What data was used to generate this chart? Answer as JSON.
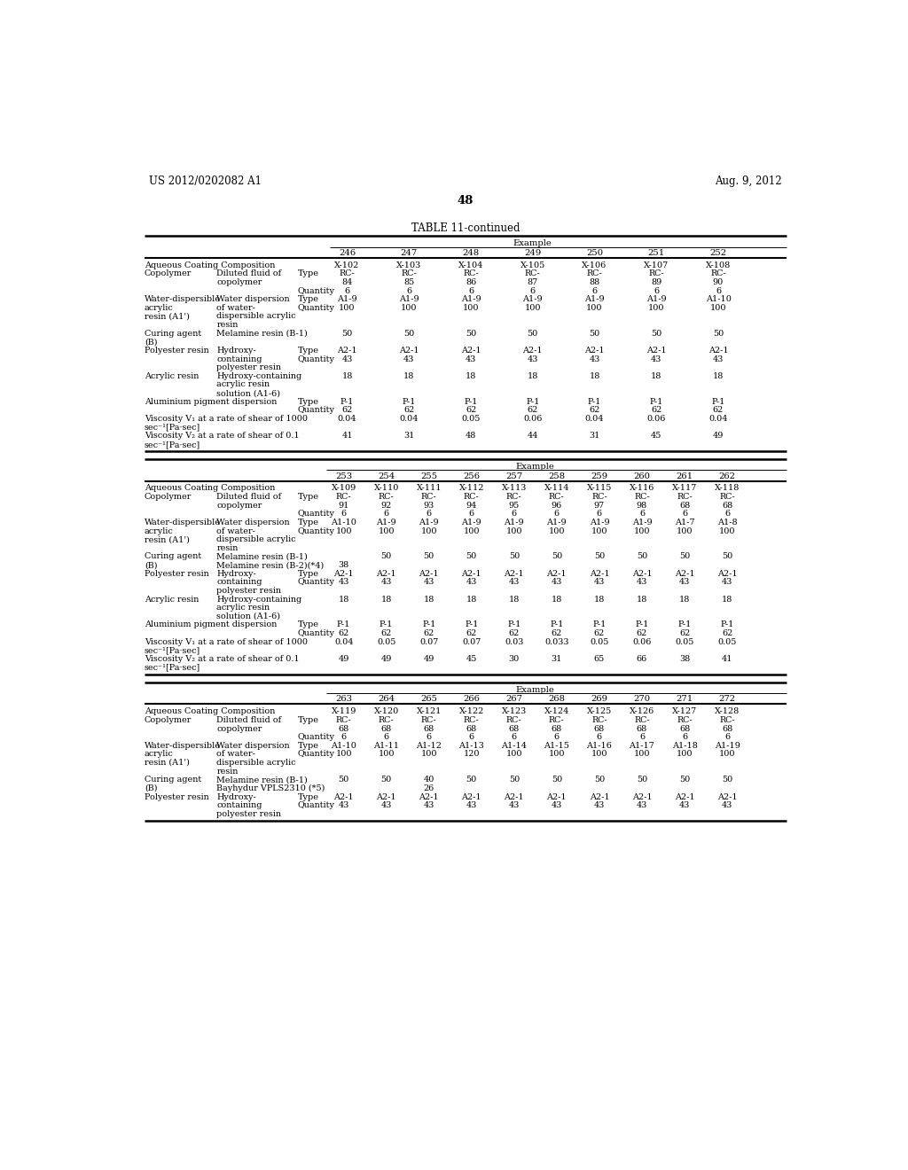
{
  "header_left": "US 2012/0202082 A1",
  "header_right": "Aug. 9, 2012",
  "page_number": "48",
  "table_title": "TABLE 11-continued",
  "background_color": "#ffffff",
  "text_color": "#000000",
  "font_size": 7.2,
  "table1": {
    "columns": [
      "246",
      "247",
      "248",
      "249",
      "250",
      "251",
      "252"
    ],
    "rows": [
      {
        "l1": "Aqueous Coating Composition",
        "l2": "",
        "l3": "",
        "vals": [
          "X-102",
          "X-103",
          "X-104",
          "X-105",
          "X-106",
          "X-107",
          "X-108"
        ]
      },
      {
        "l1": "Copolymer",
        "l2": "Diluted fluid of",
        "l3": "Type",
        "vals": [
          "RC-",
          "RC-",
          "RC-",
          "RC-",
          "RC-",
          "RC-",
          "RC-"
        ]
      },
      {
        "l1": "",
        "l2": "copolymer",
        "l3": "",
        "vals": [
          "84",
          "85",
          "86",
          "87",
          "88",
          "89",
          "90"
        ]
      },
      {
        "l1": "",
        "l2": "",
        "l3": "Quantity",
        "vals": [
          "6",
          "6",
          "6",
          "6",
          "6",
          "6",
          "6"
        ]
      },
      {
        "l1": "Water-dispersible",
        "l2": "Water dispersion",
        "l3": "Type",
        "vals": [
          "A1-9",
          "A1-9",
          "A1-9",
          "A1-9",
          "A1-9",
          "A1-9",
          "A1-10"
        ]
      },
      {
        "l1": "acrylic",
        "l2": "of water-",
        "l3": "Quantity",
        "vals": [
          "100",
          "100",
          "100",
          "100",
          "100",
          "100",
          "100"
        ]
      },
      {
        "l1": "resin (A1')",
        "l2": "dispersible acrylic",
        "l3": "",
        "vals": [
          "",
          "",
          "",
          "",
          "",
          "",
          ""
        ]
      },
      {
        "l1": "",
        "l2": "resin",
        "l3": "",
        "vals": [
          "",
          "",
          "",
          "",
          "",
          "",
          ""
        ]
      },
      {
        "l1": "Curing agent",
        "l2": "Melamine resin (B-1)",
        "l3": "",
        "vals": [
          "50",
          "50",
          "50",
          "50",
          "50",
          "50",
          "50"
        ]
      },
      {
        "l1": "(B)",
        "l2": "",
        "l3": "",
        "vals": [
          "",
          "",
          "",
          "",
          "",
          "",
          ""
        ]
      },
      {
        "l1": "Polyester resin",
        "l2": "Hydroxy-",
        "l3": "Type",
        "vals": [
          "A2-1",
          "A2-1",
          "A2-1",
          "A2-1",
          "A2-1",
          "A2-1",
          "A2-1"
        ]
      },
      {
        "l1": "",
        "l2": "containing",
        "l3": "Quantity",
        "vals": [
          "43",
          "43",
          "43",
          "43",
          "43",
          "43",
          "43"
        ]
      },
      {
        "l1": "",
        "l2": "polyester resin",
        "l3": "",
        "vals": [
          "",
          "",
          "",
          "",
          "",
          "",
          ""
        ]
      },
      {
        "l1": "Acrylic resin",
        "l2": "Hydroxy-containing",
        "l3": "",
        "vals": [
          "18",
          "18",
          "18",
          "18",
          "18",
          "18",
          "18"
        ]
      },
      {
        "l1": "",
        "l2": "acrylic resin",
        "l3": "",
        "vals": [
          "",
          "",
          "",
          "",
          "",
          "",
          ""
        ]
      },
      {
        "l1": "",
        "l2": "solution (A1-6)",
        "l3": "",
        "vals": [
          "",
          "",
          "",
          "",
          "",
          "",
          ""
        ]
      },
      {
        "l1": "Aluminium pigment dispersion",
        "l2": "",
        "l3": "Type",
        "vals": [
          "P-1",
          "P-1",
          "P-1",
          "P-1",
          "P-1",
          "P-1",
          "P-1"
        ]
      },
      {
        "l1": "",
        "l2": "",
        "l3": "Quantity",
        "vals": [
          "62",
          "62",
          "62",
          "62",
          "62",
          "62",
          "62"
        ]
      },
      {
        "l1": "Viscosity V₁ at a rate of shear of 1000",
        "l2": "",
        "l3": "",
        "vals": [
          "0.04",
          "0.04",
          "0.05",
          "0.06",
          "0.04",
          "0.06",
          "0.04"
        ]
      },
      {
        "l1": "sec⁻¹[Pa·sec]",
        "l2": "",
        "l3": "",
        "vals": [
          "",
          "",
          "",
          "",
          "",
          "",
          ""
        ]
      },
      {
        "l1": "Viscosity V₂ at a rate of shear of 0.1",
        "l2": "",
        "l3": "",
        "vals": [
          "41",
          "31",
          "48",
          "44",
          "31",
          "45",
          "49"
        ]
      },
      {
        "l1": "sec⁻¹[Pa·sec]",
        "l2": "",
        "l3": "",
        "vals": [
          "",
          "",
          "",
          "",
          "",
          "",
          ""
        ]
      }
    ]
  },
  "table2": {
    "columns": [
      "253",
      "254",
      "255",
      "256",
      "257",
      "258",
      "259",
      "260",
      "261",
      "262"
    ],
    "rows": [
      {
        "l1": "Aqueous Coating Composition",
        "l2": "",
        "l3": "",
        "vals": [
          "X-109",
          "X-110",
          "X-111",
          "X-112",
          "X-113",
          "X-114",
          "X-115",
          "X-116",
          "X-117",
          "X-118"
        ]
      },
      {
        "l1": "Copolymer",
        "l2": "Diluted fluid of",
        "l3": "Type",
        "vals": [
          "RC-",
          "RC-",
          "RC-",
          "RC-",
          "RC-",
          "RC-",
          "RC-",
          "RC-",
          "RC-",
          "RC-"
        ]
      },
      {
        "l1": "",
        "l2": "copolymer",
        "l3": "",
        "vals": [
          "91",
          "92",
          "93",
          "94",
          "95",
          "96",
          "97",
          "98",
          "68",
          "68"
        ]
      },
      {
        "l1": "",
        "l2": "",
        "l3": "Quantity",
        "vals": [
          "6",
          "6",
          "6",
          "6",
          "6",
          "6",
          "6",
          "6",
          "6",
          "6"
        ]
      },
      {
        "l1": "Water-dispersible",
        "l2": "Water dispersion",
        "l3": "Type",
        "vals": [
          "A1-10",
          "A1-9",
          "A1-9",
          "A1-9",
          "A1-9",
          "A1-9",
          "A1-9",
          "A1-9",
          "A1-7",
          "A1-8"
        ]
      },
      {
        "l1": "acrylic",
        "l2": "of water-",
        "l3": "Quantity",
        "vals": [
          "100",
          "100",
          "100",
          "100",
          "100",
          "100",
          "100",
          "100",
          "100",
          "100"
        ]
      },
      {
        "l1": "resin (A1')",
        "l2": "dispersible acrylic",
        "l3": "",
        "vals": [
          "",
          "",
          "",
          "",
          "",
          "",
          "",
          "",
          "",
          ""
        ]
      },
      {
        "l1": "",
        "l2": "resin",
        "l3": "",
        "vals": [
          "",
          "",
          "",
          "",
          "",
          "",
          "",
          "",
          "",
          ""
        ]
      },
      {
        "l1": "Curing agent",
        "l2": "Melamine resin (B-1)",
        "l3": "",
        "vals": [
          "",
          "50",
          "50",
          "50",
          "50",
          "50",
          "50",
          "50",
          "50",
          "50"
        ]
      },
      {
        "l1": "(B)",
        "l2": "Melamine resin (B-2)(*4)",
        "l3": "",
        "vals": [
          "38",
          "",
          "",
          "",
          "",
          "",
          "",
          "",
          "",
          ""
        ]
      },
      {
        "l1": "Polyester resin",
        "l2": "Hydroxy-",
        "l3": "Type",
        "vals": [
          "A2-1",
          "A2-1",
          "A2-1",
          "A2-1",
          "A2-1",
          "A2-1",
          "A2-1",
          "A2-1",
          "A2-1",
          "A2-1"
        ]
      },
      {
        "l1": "",
        "l2": "containing",
        "l3": "Quantity",
        "vals": [
          "43",
          "43",
          "43",
          "43",
          "43",
          "43",
          "43",
          "43",
          "43",
          "43"
        ]
      },
      {
        "l1": "",
        "l2": "polyester resin",
        "l3": "",
        "vals": [
          "",
          "",
          "",
          "",
          "",
          "",
          "",
          "",
          "",
          ""
        ]
      },
      {
        "l1": "Acrylic resin",
        "l2": "Hydroxy-containing",
        "l3": "",
        "vals": [
          "18",
          "18",
          "18",
          "18",
          "18",
          "18",
          "18",
          "18",
          "18",
          "18"
        ]
      },
      {
        "l1": "",
        "l2": "acrylic resin",
        "l3": "",
        "vals": [
          "",
          "",
          "",
          "",
          "",
          "",
          "",
          "",
          "",
          ""
        ]
      },
      {
        "l1": "",
        "l2": "solution (A1-6)",
        "l3": "",
        "vals": [
          "",
          "",
          "",
          "",
          "",
          "",
          "",
          "",
          "",
          ""
        ]
      },
      {
        "l1": "Aluminium pigment dispersion",
        "l2": "",
        "l3": "Type",
        "vals": [
          "P-1",
          "P-1",
          "P-1",
          "P-1",
          "P-1",
          "P-1",
          "P-1",
          "P-1",
          "P-1",
          "P-1"
        ]
      },
      {
        "l1": "",
        "l2": "",
        "l3": "Quantity",
        "vals": [
          "62",
          "62",
          "62",
          "62",
          "62",
          "62",
          "62",
          "62",
          "62",
          "62"
        ]
      },
      {
        "l1": "Viscosity V₁ at a rate of shear of 1000",
        "l2": "",
        "l3": "",
        "vals": [
          "0.04",
          "0.05",
          "0.07",
          "0.07",
          "0.03",
          "0.033",
          "0.05",
          "0.06",
          "0.05",
          "0.05"
        ]
      },
      {
        "l1": "sec⁻¹[Pa·sec]",
        "l2": "",
        "l3": "",
        "vals": [
          "",
          "",
          "",
          "",
          "",
          "",
          "",
          "",
          "",
          ""
        ]
      },
      {
        "l1": "Viscosity V₂ at a rate of shear of 0.1",
        "l2": "",
        "l3": "",
        "vals": [
          "49",
          "49",
          "49",
          "45",
          "30",
          "31",
          "65",
          "66",
          "38",
          "41"
        ]
      },
      {
        "l1": "sec⁻¹[Pa·sec]",
        "l2": "",
        "l3": "",
        "vals": [
          "",
          "",
          "",
          "",
          "",
          "",
          "",
          "",
          "",
          ""
        ]
      }
    ]
  },
  "table3": {
    "columns": [
      "263",
      "264",
      "265",
      "266",
      "267",
      "268",
      "269",
      "270",
      "271",
      "272"
    ],
    "rows": [
      {
        "l1": "Aqueous Coating Composition",
        "l2": "",
        "l3": "",
        "vals": [
          "X-119",
          "X-120",
          "X-121",
          "X-122",
          "X-123",
          "X-124",
          "X-125",
          "X-126",
          "X-127",
          "X-128"
        ]
      },
      {
        "l1": "Copolymer",
        "l2": "Diluted fluid of",
        "l3": "Type",
        "vals": [
          "RC-",
          "RC-",
          "RC-",
          "RC-",
          "RC-",
          "RC-",
          "RC-",
          "RC-",
          "RC-",
          "RC-"
        ]
      },
      {
        "l1": "",
        "l2": "copolymer",
        "l3": "",
        "vals": [
          "68",
          "68",
          "68",
          "68",
          "68",
          "68",
          "68",
          "68",
          "68",
          "68"
        ]
      },
      {
        "l1": "",
        "l2": "",
        "l3": "Quantity",
        "vals": [
          "6",
          "6",
          "6",
          "6",
          "6",
          "6",
          "6",
          "6",
          "6",
          "6"
        ]
      },
      {
        "l1": "Water-dispersible",
        "l2": "Water dispersion",
        "l3": "Type",
        "vals": [
          "A1-10",
          "A1-11",
          "A1-12",
          "A1-13",
          "A1-14",
          "A1-15",
          "A1-16",
          "A1-17",
          "A1-18",
          "A1-19"
        ]
      },
      {
        "l1": "acrylic",
        "l2": "of water-",
        "l3": "Quantity",
        "vals": [
          "100",
          "100",
          "100",
          "120",
          "100",
          "100",
          "100",
          "100",
          "100",
          "100"
        ]
      },
      {
        "l1": "resin (A1')",
        "l2": "dispersible acrylic",
        "l3": "",
        "vals": [
          "",
          "",
          "",
          "",
          "",
          "",
          "",
          "",
          "",
          ""
        ]
      },
      {
        "l1": "",
        "l2": "resin",
        "l3": "",
        "vals": [
          "",
          "",
          "",
          "",
          "",
          "",
          "",
          "",
          "",
          ""
        ]
      },
      {
        "l1": "Curing agent",
        "l2": "Melamine resin (B-1)",
        "l3": "",
        "vals": [
          "50",
          "50",
          "40",
          "50",
          "50",
          "50",
          "50",
          "50",
          "50",
          "50"
        ]
      },
      {
        "l1": "(B)",
        "l2": "Bayhydur VPLS2310 (*5)",
        "l3": "",
        "vals": [
          "",
          "",
          "26",
          "",
          "",
          "",
          "",
          "",
          "",
          ""
        ]
      },
      {
        "l1": "Polyester resin",
        "l2": "Hydroxy-",
        "l3": "Type",
        "vals": [
          "A2-1",
          "A2-1",
          "A2-1",
          "A2-1",
          "A2-1",
          "A2-1",
          "A2-1",
          "A2-1",
          "A2-1",
          "A2-1"
        ]
      },
      {
        "l1": "",
        "l2": "containing",
        "l3": "Quantity",
        "vals": [
          "43",
          "43",
          "43",
          "43",
          "43",
          "43",
          "43",
          "43",
          "43",
          "43"
        ]
      },
      {
        "l1": "",
        "l2": "polyester resin",
        "l3": "",
        "vals": [
          "",
          "",
          "",
          "",
          "",
          "",
          "",
          "",
          "",
          ""
        ]
      }
    ]
  }
}
